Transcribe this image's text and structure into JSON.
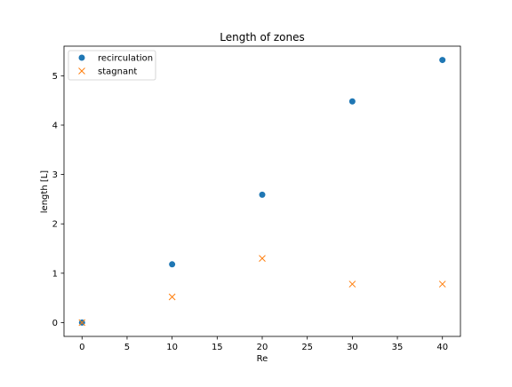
{
  "chart_data": {
    "type": "scatter",
    "title": "Length of zones",
    "xlabel": "Re",
    "ylabel": "length [L]",
    "xlim": [
      -2,
      42
    ],
    "ylim": [
      -0.28,
      5.6
    ],
    "xticks": [
      0,
      5,
      10,
      15,
      20,
      25,
      30,
      35,
      40
    ],
    "yticks": [
      0,
      1,
      2,
      3,
      4,
      5
    ],
    "grid": false,
    "legend_position": "upper-left",
    "series": [
      {
        "name": "recirculation",
        "marker": "circle",
        "color": "#1f77b4",
        "points": [
          {
            "x": 0,
            "y": 0
          },
          {
            "x": 10,
            "y": 1.18
          },
          {
            "x": 20,
            "y": 2.59
          },
          {
            "x": 30,
            "y": 4.48
          },
          {
            "x": 40,
            "y": 5.32
          }
        ]
      },
      {
        "name": "stagnant",
        "marker": "x",
        "color": "#ff7f0e",
        "points": [
          {
            "x": 0,
            "y": 0
          },
          {
            "x": 10,
            "y": 0.52
          },
          {
            "x": 20,
            "y": 1.3
          },
          {
            "x": 30,
            "y": 0.78
          },
          {
            "x": 40,
            "y": 0.78
          }
        ]
      }
    ]
  }
}
